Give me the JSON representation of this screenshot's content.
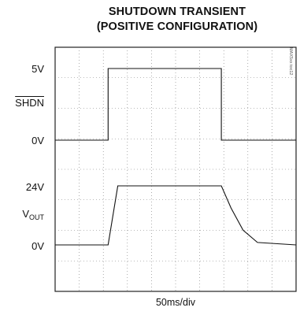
{
  "title_line1": "SHUTDOWN TRANSIENT",
  "title_line2": "(POSITIVE CONFIGURATION)",
  "side_code": "MAX5xx toc12",
  "chart_data": {
    "type": "line",
    "xlabel": "50ms/div",
    "x_divisions": 10,
    "grid": true,
    "top_trace": {
      "label": "SHDN",
      "labels": [
        "5V",
        "0V"
      ],
      "x": [
        0,
        2.2,
        2.2,
        6.9,
        6.9,
        10
      ],
      "y": [
        0,
        0,
        5,
        5,
        0,
        0
      ]
    },
    "bottom_trace": {
      "label_main": "V",
      "label_sub": "OUT",
      "labels": [
        "24V",
        "0V"
      ],
      "x": [
        0,
        2.2,
        2.6,
        6.9,
        7.3,
        7.8,
        8.4,
        10
      ],
      "y": [
        0,
        0,
        24,
        24,
        15,
        6,
        1,
        0
      ]
    }
  }
}
